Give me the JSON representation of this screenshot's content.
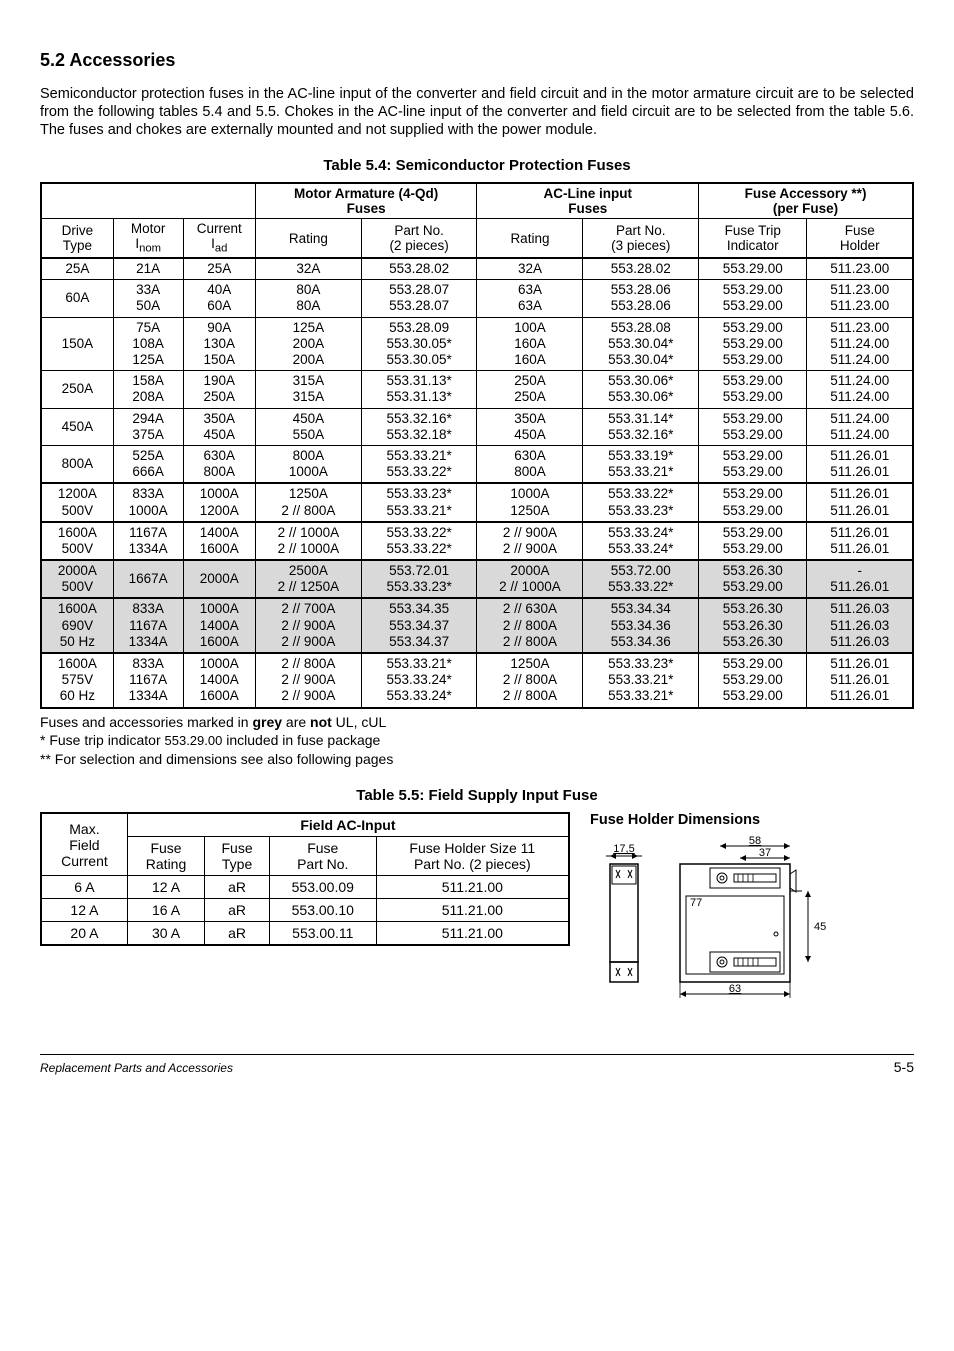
{
  "heading": "5.2 Accessories",
  "intro": "Semiconductor protection fuses in the AC-line input of the converter and field circuit and in the motor armature circuit are to be selected from the following tables 5.4 and 5.5. Chokes in the AC-line input of the converter and field circuit are to be selected from the table 5.6. The fuses and chokes are externally mounted and not supplied with the power module.",
  "t54": {
    "caption": "Table 5.4:  Semiconductor Protection Fuses",
    "head": {
      "motor_armature": "Motor Armature (4-Qd)\nFuses",
      "ac_line": "AC-Line input\nFuses",
      "fuse_acc": "Fuse Accessory  **)\n(per Fuse)",
      "drive_type": "Drive\nType",
      "motor_inom": "Motor\nInom",
      "current_iad": "Current\nIad",
      "rating": "Rating",
      "part_no_2p": "Part No.\n(2 pieces)",
      "part_no_3p": "Part No.\n(3 pieces)",
      "fuse_trip_ind": "Fuse Trip\nIndicator",
      "fuse_holder": "Fuse\nHolder"
    },
    "rows": [
      {
        "drive": "25A",
        "motor": [
          "21A"
        ],
        "current": [
          "25A"
        ],
        "ma_rating": [
          "32A"
        ],
        "ma_part": [
          "553.28.02"
        ],
        "ac_rating": [
          "32A"
        ],
        "ac_part": [
          "553.28.02"
        ],
        "trip": [
          "553.29.00"
        ],
        "holder": [
          "511.23.00"
        ],
        "grey": false,
        "bt": true
      },
      {
        "drive": "60A",
        "motor": [
          "33A",
          "50A"
        ],
        "current": [
          "40A",
          "60A"
        ],
        "ma_rating": [
          "80A",
          "80A"
        ],
        "ma_part": [
          "553.28.07",
          "553.28.07"
        ],
        "ac_rating": [
          "63A",
          "63A"
        ],
        "ac_part": [
          "553.28.06",
          "553.28.06"
        ],
        "trip": [
          "553.29.00",
          "553.29.00"
        ],
        "holder": [
          "511.23.00",
          "511.23.00"
        ],
        "grey": false
      },
      {
        "drive": "150A",
        "motor": [
          "75A",
          "108A",
          "125A"
        ],
        "current": [
          "90A",
          "130A",
          "150A"
        ],
        "ma_rating": [
          "125A",
          "200A",
          "200A"
        ],
        "ma_part": [
          "553.28.09",
          "553.30.05*",
          "553.30.05*"
        ],
        "ac_rating": [
          "100A",
          "160A",
          "160A"
        ],
        "ac_part": [
          "553.28.08",
          "553.30.04*",
          "553.30.04*"
        ],
        "trip": [
          "553.29.00",
          "553.29.00",
          "553.29.00"
        ],
        "holder": [
          "511.23.00",
          "511.24.00",
          "511.24.00"
        ],
        "grey": false
      },
      {
        "drive": "250A",
        "motor": [
          "158A",
          "208A"
        ],
        "current": [
          "190A",
          "250A"
        ],
        "ma_rating": [
          "315A",
          "315A"
        ],
        "ma_part": [
          "553.31.13*",
          "553.31.13*"
        ],
        "ac_rating": [
          "250A",
          "250A"
        ],
        "ac_part": [
          "553.30.06*",
          "553.30.06*"
        ],
        "trip": [
          "553.29.00",
          "553.29.00"
        ],
        "holder": [
          "511.24.00",
          "511.24.00"
        ],
        "grey": false
      },
      {
        "drive": "450A",
        "motor": [
          "294A",
          "375A"
        ],
        "current": [
          "350A",
          "450A"
        ],
        "ma_rating": [
          "450A",
          "550A"
        ],
        "ma_part": [
          "553.32.16*",
          "553.32.18*"
        ],
        "ac_rating": [
          "350A",
          "450A"
        ],
        "ac_part": [
          "553.31.14*",
          "553.32.16*"
        ],
        "trip": [
          "553.29.00",
          "553.29.00"
        ],
        "holder": [
          "511.24.00",
          "511.24.00"
        ],
        "grey": false
      },
      {
        "drive": "800A",
        "motor": [
          "525A",
          "666A"
        ],
        "current": [
          "630A",
          "800A"
        ],
        "ma_rating": [
          "800A",
          "1000A"
        ],
        "ma_part": [
          "553.33.21*",
          "553.33.22*"
        ],
        "ac_rating": [
          "630A",
          "800A"
        ],
        "ac_part": [
          "553.33.19*",
          "553.33.21*"
        ],
        "trip": [
          "553.29.00",
          "553.29.00"
        ],
        "holder": [
          "511.26.01",
          "511.26.01"
        ],
        "grey": false
      },
      {
        "drive": "1200A\n500V",
        "motor": [
          "833A",
          "1000A"
        ],
        "current": [
          "1000A",
          "1200A"
        ],
        "ma_rating": [
          "1250A",
          "2 // 800A"
        ],
        "ma_part": [
          "553.33.23*",
          "553.33.21*"
        ],
        "ac_rating": [
          "1000A",
          "1250A"
        ],
        "ac_part": [
          "553.33.22*",
          "553.33.23*"
        ],
        "trip": [
          "553.29.00",
          "553.29.00"
        ],
        "holder": [
          "511.26.01",
          "511.26.01"
        ],
        "grey": false,
        "bt": true
      },
      {
        "drive": "1600A\n500V",
        "motor": [
          "1167A",
          "1334A"
        ],
        "current": [
          "1400A",
          "1600A"
        ],
        "ma_rating": [
          "2 // 1000A",
          "2 // 1000A"
        ],
        "ma_part": [
          "553.33.22*",
          "553.33.22*"
        ],
        "ac_rating": [
          "2 // 900A",
          "2 // 900A"
        ],
        "ac_part": [
          "553.33.24*",
          "553.33.24*"
        ],
        "trip": [
          "553.29.00",
          "553.29.00"
        ],
        "holder": [
          "511.26.01",
          "511.26.01"
        ],
        "grey": false,
        "bt": true
      },
      {
        "drive": "2000A\n500V",
        "motor": [
          "1667A"
        ],
        "current": [
          "2000A"
        ],
        "ma_rating": [
          "2500A",
          "2 // 1250A"
        ],
        "ma_part": [
          "553.72.01",
          "553.33.23*"
        ],
        "ac_rating": [
          "2000A",
          "2 // 1000A"
        ],
        "ac_part": [
          "553.72.00",
          "553.33.22*"
        ],
        "trip": [
          "553.26.30",
          "553.29.00"
        ],
        "holder": [
          "-",
          "511.26.01"
        ],
        "grey": true,
        "bt": true
      },
      {
        "drive": "1600A\n690V\n50 Hz",
        "motor": [
          "833A",
          "1167A",
          "1334A"
        ],
        "current": [
          "1000A",
          "1400A",
          "1600A"
        ],
        "ma_rating": [
          "2 // 700A",
          "2 // 900A",
          "2 // 900A"
        ],
        "ma_part": [
          "553.34.35",
          "553.34.37",
          "553.34.37"
        ],
        "ac_rating": [
          "2 // 630A",
          "2 // 800A",
          "2 // 800A"
        ],
        "ac_part": [
          "553.34.34",
          "553.34.36",
          "553.34.36"
        ],
        "trip": [
          "553.26.30",
          "553.26.30",
          "553.26.30"
        ],
        "holder": [
          "511.26.03",
          "511.26.03",
          "511.26.03"
        ],
        "grey": true,
        "bt": true
      },
      {
        "drive": "1600A\n575V\n60 Hz",
        "motor": [
          "833A",
          "1167A",
          "1334A"
        ],
        "current": [
          "1000A",
          "1400A",
          "1600A"
        ],
        "ma_rating": [
          "2 // 800A",
          "2 // 900A",
          "2 // 900A"
        ],
        "ma_part": [
          "553.33.21*",
          "553.33.24*",
          "553.33.24*"
        ],
        "ac_rating": [
          "1250A",
          "2 // 800A",
          "2 // 800A"
        ],
        "ac_part": [
          "553.33.23*",
          "553.33.21*",
          "553.33.21*"
        ],
        "trip": [
          "553.29.00",
          "553.29.00",
          "553.29.00"
        ],
        "holder": [
          "511.26.01",
          "511.26.01",
          "511.26.01"
        ],
        "grey": false,
        "bt": true,
        "bb": true
      }
    ]
  },
  "notes": {
    "n1_a": "   Fuses and accessories marked in ",
    "n1_b": "grey",
    "n1_c": " are ",
    "n1_d": "not",
    "n1_e": " UL, cUL",
    "n2_a": "*  Fuse trip indicator ",
    "n2_b": "553.29.00",
    "n2_c": " included in fuse package",
    "n3": "** For selection and dimensions see also following pages"
  },
  "t55": {
    "caption": "Table 5.5: Field Supply Input Fuse",
    "head": {
      "max_field_current": "Max.\nField\nCurrent",
      "field_ac_input": "Field AC-Input",
      "fuse_rating": "Fuse\nRating",
      "fuse_type": "Fuse\nType",
      "fuse_part_no": "Fuse\nPart No.",
      "fuse_holder_size": "Fuse Holder Size 11\nPart No. (2 pieces)"
    },
    "rows": [
      {
        "c": "6 A",
        "rating": "12 A",
        "type": "aR",
        "part": "553.00.09",
        "holder": "511.21.00"
      },
      {
        "c": "12 A",
        "rating": "16 A",
        "type": "aR",
        "part": "553.00.10",
        "holder": "511.21.00"
      },
      {
        "c": "20 A",
        "rating": "30 A",
        "type": "aR",
        "part": "553.00.11",
        "holder": "511.21.00"
      }
    ]
  },
  "dim": {
    "title": "Fuse Holder Dimensions",
    "d17_5": "17,5",
    "d58": "58",
    "d37": "37",
    "d77": "77",
    "d45": "45",
    "d63": "63"
  },
  "footer": {
    "left": "Replacement Parts and Accessories",
    "right": "5-5"
  }
}
